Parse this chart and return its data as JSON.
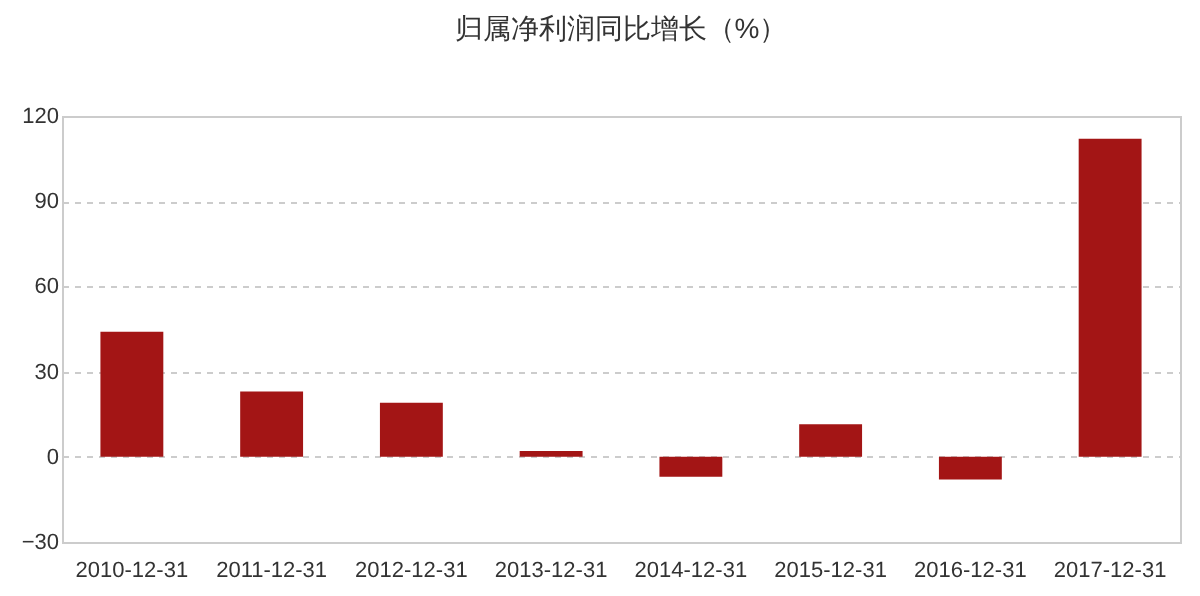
{
  "chart_data": {
    "type": "bar",
    "title": "归属净利润同比增长（%）",
    "categories": [
      "2010-12-31",
      "2011-12-31",
      "2012-12-31",
      "2013-12-31",
      "2014-12-31",
      "2015-12-31",
      "2016-12-31",
      "2017-12-31"
    ],
    "values": [
      44,
      23,
      19,
      2,
      -7,
      11.5,
      -8,
      112
    ],
    "color": "#a31515",
    "ylim": [
      -30,
      120
    ],
    "yticks": [
      -30,
      0,
      30,
      60,
      90,
      120
    ],
    "grid": "y"
  }
}
